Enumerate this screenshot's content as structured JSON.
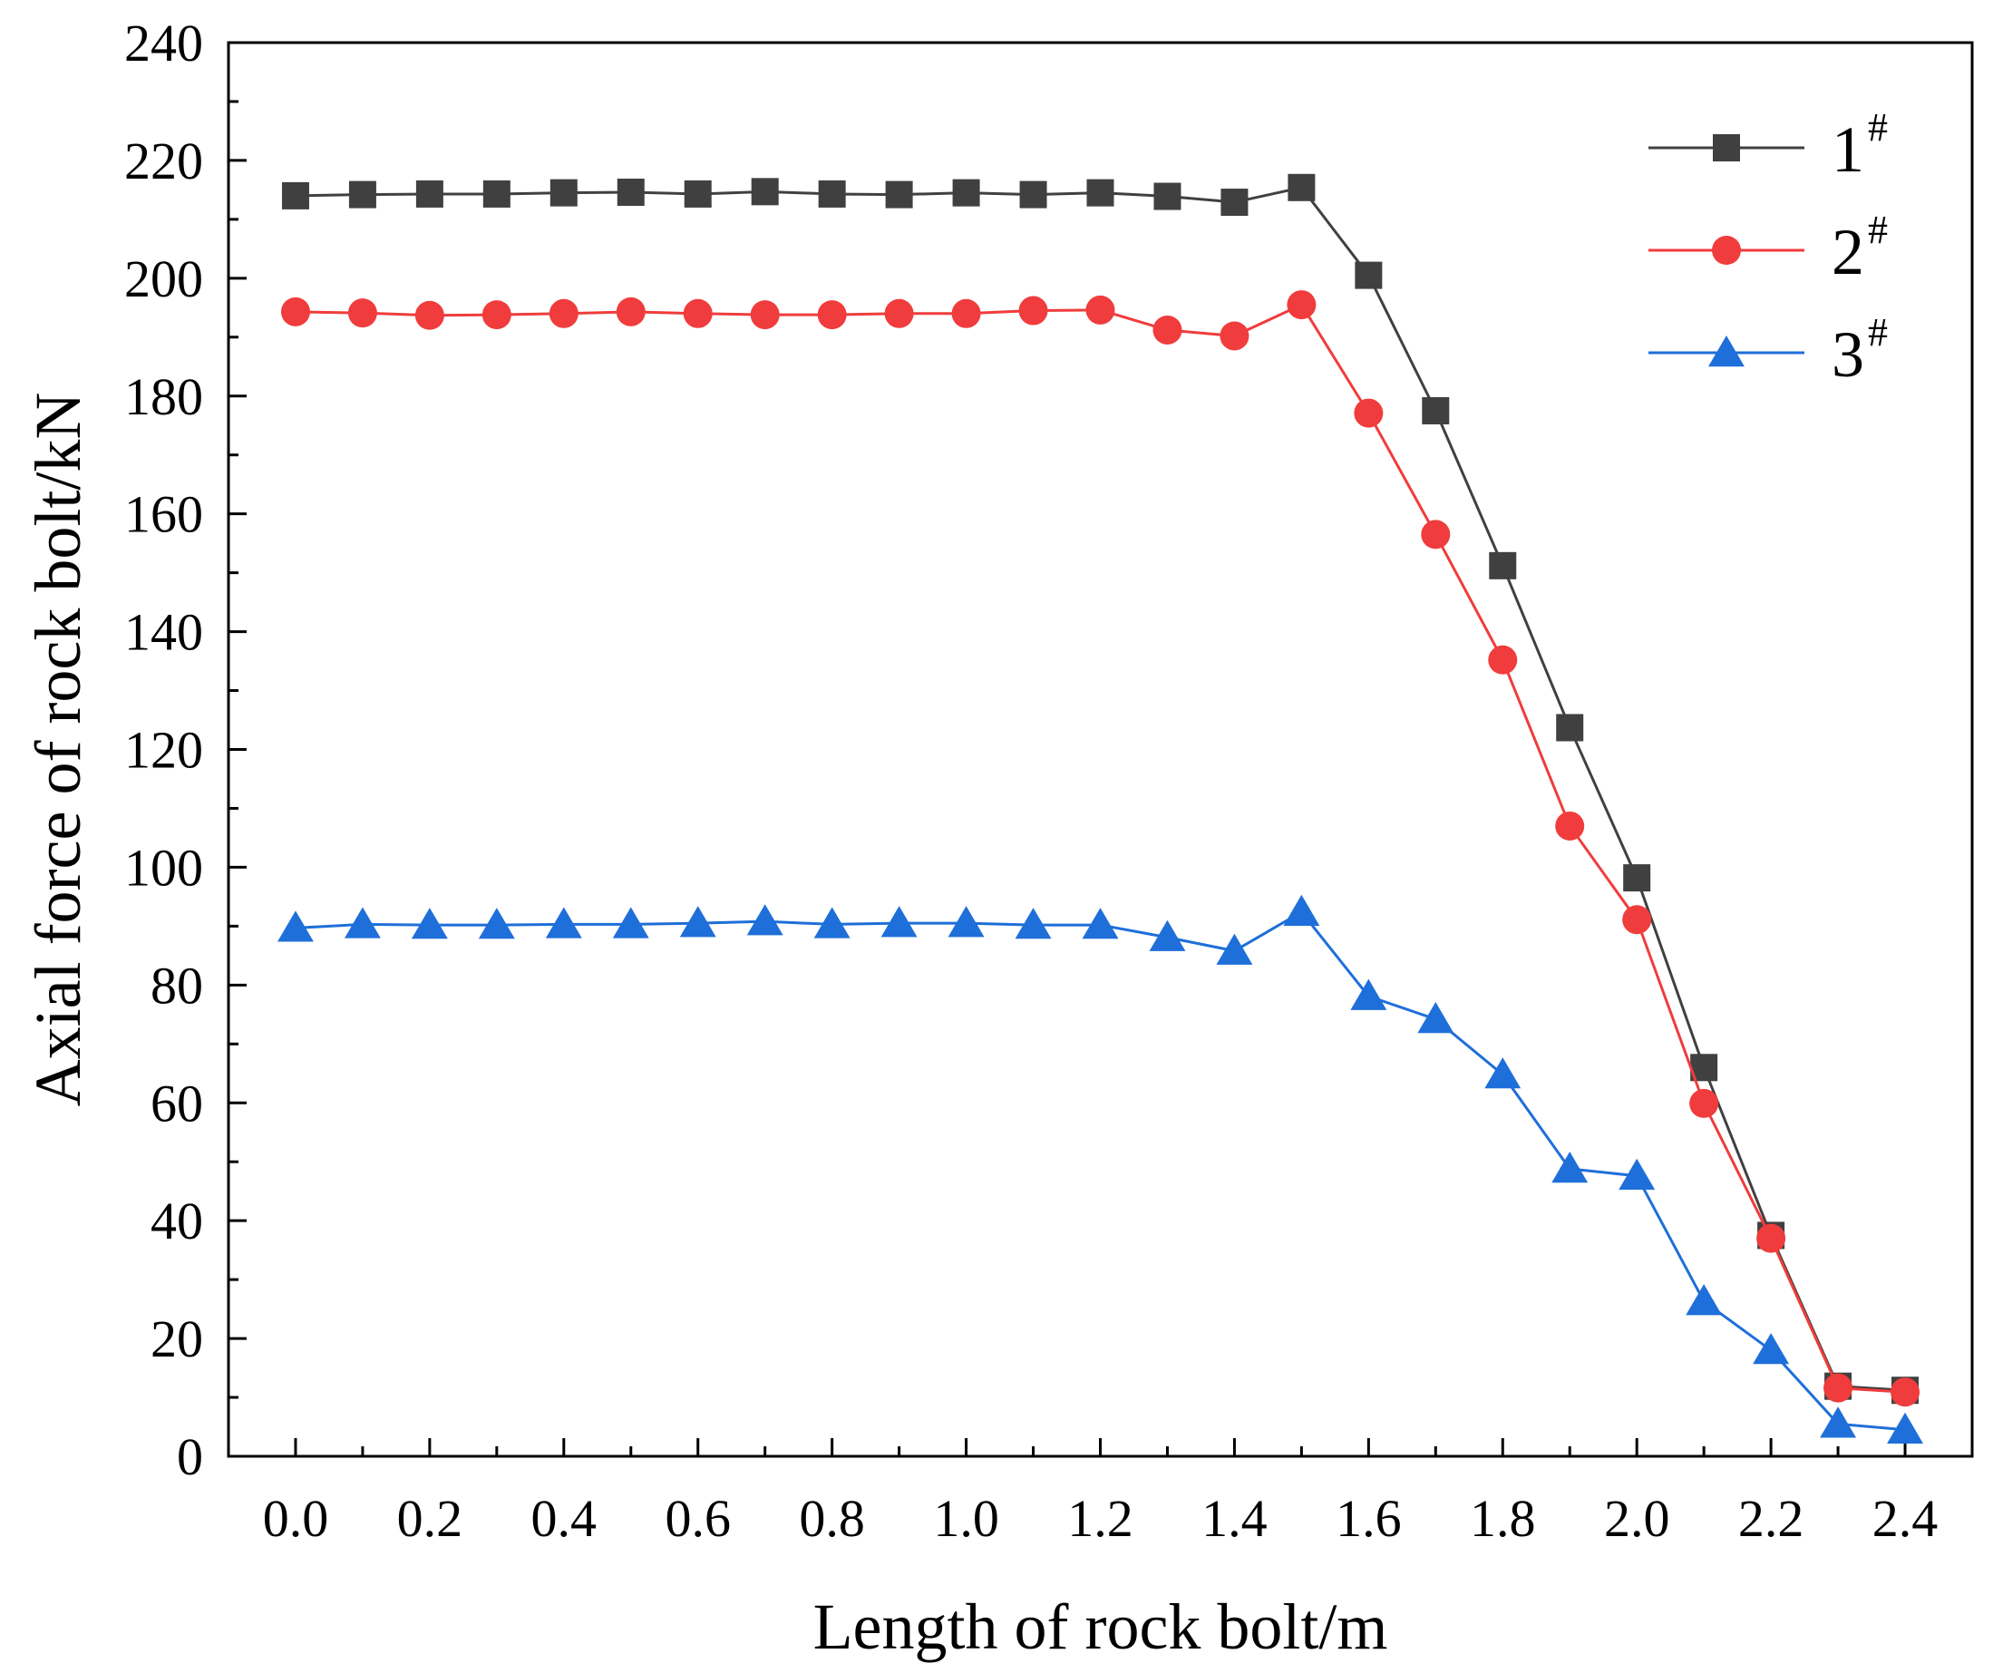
{
  "chart_data": {
    "type": "line",
    "title": "",
    "xlabel": "Length of rock bolt/m",
    "ylabel": "Axial force of rock bolt/kN",
    "xlim": [
      -0.1,
      2.5
    ],
    "ylim": [
      0,
      240
    ],
    "x_ticks": [
      "0.0",
      "0.2",
      "0.4",
      "0.6",
      "0.8",
      "1.0",
      "1.2",
      "1.4",
      "1.6",
      "1.8",
      "2.0",
      "2.2",
      "2.4"
    ],
    "y_ticks": [
      "0",
      "20",
      "40",
      "60",
      "80",
      "100",
      "120",
      "140",
      "160",
      "180",
      "200",
      "220",
      "240"
    ],
    "grid": false,
    "legend_position": "top-right",
    "x": [
      0.0,
      0.1,
      0.2,
      0.3,
      0.4,
      0.5,
      0.6,
      0.7,
      0.8,
      0.9,
      1.0,
      1.1,
      1.2,
      1.3,
      1.4,
      1.5,
      1.6,
      1.7,
      1.8,
      1.9,
      2.0,
      2.1,
      2.2,
      2.3,
      2.4
    ],
    "series": [
      {
        "name": "1",
        "sup": "#",
        "color": "#404040",
        "marker": "square",
        "values": [
          214,
          214.2,
          214.3,
          214.3,
          214.5,
          214.6,
          214.3,
          214.7,
          214.3,
          214.2,
          214.5,
          214.2,
          214.5,
          213.9,
          212.9,
          215.4,
          200.5,
          177.5,
          151.2,
          123.7,
          98.2,
          66,
          37.5,
          11.9,
          11.2
        ]
      },
      {
        "name": "2",
        "sup": "#",
        "color": "#f03c3c",
        "marker": "circle",
        "values": [
          194.3,
          194.1,
          193.7,
          193.8,
          194,
          194.3,
          194,
          193.8,
          193.8,
          194,
          194,
          194.5,
          194.6,
          191.2,
          190.2,
          195.5,
          177.1,
          156.5,
          135.2,
          107,
          91.1,
          59.9,
          37,
          11.6,
          10.9
        ]
      },
      {
        "name": "3",
        "sup": "#",
        "color": "#1e6fd9",
        "marker": "triangle",
        "values": [
          89.7,
          90.3,
          90.2,
          90.2,
          90.3,
          90.3,
          90.5,
          90.8,
          90.3,
          90.5,
          90.5,
          90.2,
          90.2,
          88.1,
          85.8,
          92.4,
          78.1,
          74.2,
          64.8,
          48.8,
          47.6,
          26.3,
          18,
          5.5,
          4.5
        ]
      }
    ]
  }
}
